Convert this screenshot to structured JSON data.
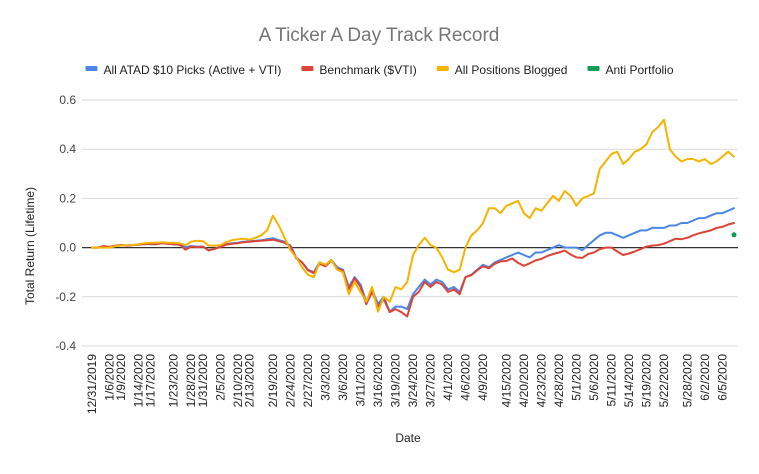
{
  "chart_data": {
    "type": "line",
    "title": "A Ticker A Day Track Record",
    "xlabel": "Date",
    "ylabel": "Total Return (Lifetime)",
    "ylim": [
      -0.4,
      0.6
    ],
    "yticks": [
      "-0.4",
      "-0.2",
      "0.0",
      "0.2",
      "0.4",
      "0.6"
    ],
    "grid": true,
    "legend_position": "top",
    "x_tick_labels": [
      "12/31/2019",
      "1/6/2020",
      "1/9/2020",
      "1/14/2020",
      "1/17/2020",
      "1/23/2020",
      "1/28/2020",
      "1/31/2020",
      "2/5/2020",
      "2/10/2020",
      "2/13/2020",
      "2/19/2020",
      "2/24/2020",
      "2/27/2020",
      "3/3/2020",
      "3/6/2020",
      "3/11/2020",
      "3/16/2020",
      "3/19/2020",
      "3/24/2020",
      "3/27/2020",
      "4/1/2020",
      "4/6/2020",
      "4/9/2020",
      "4/15/2020",
      "4/20/2020",
      "4/23/2020",
      "4/28/2020",
      "5/1/2020",
      "5/6/2020",
      "5/11/2020",
      "5/14/2020",
      "5/19/2020",
      "5/22/2020",
      "5/28/2020",
      "6/2/2020",
      "6/5/2020"
    ],
    "x_tick_index": [
      0,
      3,
      5,
      8,
      10,
      14,
      17,
      19,
      22,
      25,
      27,
      31,
      34,
      37,
      40,
      43,
      46,
      49,
      52,
      55,
      58,
      61,
      64,
      67,
      71,
      74,
      77,
      80,
      83,
      86,
      89,
      92,
      95,
      98,
      102,
      105,
      108
    ],
    "x_count": 111,
    "series": [
      {
        "name": "All ATAD $10 Picks (Active + VTI)",
        "color": "#4a86e8",
        "values": [
          0.0,
          0.0,
          0.004,
          0.002,
          0.006,
          0.01,
          0.008,
          0.01,
          0.012,
          0.016,
          0.014,
          0.014,
          0.018,
          0.016,
          0.014,
          0.012,
          0.002,
          0.006,
          0.004,
          0.004,
          -0.01,
          -0.006,
          0.004,
          0.014,
          0.018,
          0.02,
          0.024,
          0.026,
          0.028,
          0.03,
          0.034,
          0.038,
          0.03,
          0.024,
          0.008,
          -0.04,
          -0.06,
          -0.09,
          -0.1,
          -0.06,
          -0.07,
          -0.05,
          -0.08,
          -0.09,
          -0.16,
          -0.12,
          -0.15,
          -0.22,
          -0.17,
          -0.23,
          -0.2,
          -0.26,
          -0.24,
          -0.24,
          -0.25,
          -0.19,
          -0.16,
          -0.13,
          -0.15,
          -0.13,
          -0.14,
          -0.17,
          -0.16,
          -0.18,
          -0.12,
          -0.11,
          -0.09,
          -0.07,
          -0.08,
          -0.06,
          -0.05,
          -0.04,
          -0.03,
          -0.02,
          -0.03,
          -0.04,
          -0.02,
          -0.02,
          -0.01,
          0.0,
          0.01,
          0.0,
          0.0,
          0.0,
          -0.01,
          0.01,
          0.03,
          0.05,
          0.06,
          0.06,
          0.05,
          0.04,
          0.05,
          0.06,
          0.07,
          0.07,
          0.08,
          0.08,
          0.08,
          0.09,
          0.09,
          0.1,
          0.1,
          0.11,
          0.12,
          0.12,
          0.13,
          0.14,
          0.14,
          0.15,
          0.16
        ]
      },
      {
        "name": "Benchmark ($VTI)",
        "color": "#db4437",
        "values": [
          0.0,
          0.0,
          0.006,
          0.003,
          0.008,
          0.01,
          0.008,
          0.01,
          0.012,
          0.014,
          0.016,
          0.014,
          0.018,
          0.016,
          0.014,
          0.012,
          -0.008,
          0.004,
          0.002,
          0.004,
          -0.012,
          -0.004,
          0.002,
          0.012,
          0.016,
          0.018,
          0.022,
          0.024,
          0.026,
          0.028,
          0.03,
          0.032,
          0.026,
          0.02,
          0.004,
          -0.044,
          -0.06,
          -0.092,
          -0.104,
          -0.066,
          -0.076,
          -0.052,
          -0.086,
          -0.094,
          -0.17,
          -0.124,
          -0.16,
          -0.23,
          -0.18,
          -0.24,
          -0.21,
          -0.262,
          -0.25,
          -0.262,
          -0.28,
          -0.2,
          -0.18,
          -0.14,
          -0.16,
          -0.14,
          -0.15,
          -0.18,
          -0.17,
          -0.19,
          -0.12,
          -0.112,
          -0.092,
          -0.076,
          -0.084,
          -0.066,
          -0.056,
          -0.054,
          -0.044,
          -0.062,
          -0.074,
          -0.064,
          -0.052,
          -0.046,
          -0.034,
          -0.026,
          -0.02,
          -0.012,
          -0.028,
          -0.04,
          -0.042,
          -0.026,
          -0.02,
          -0.006,
          0.0,
          0.0,
          -0.016,
          -0.03,
          -0.024,
          -0.016,
          -0.006,
          0.004,
          0.008,
          0.01,
          0.016,
          0.026,
          0.036,
          0.034,
          0.04,
          0.05,
          0.058,
          0.064,
          0.07,
          0.08,
          0.084,
          0.094,
          0.1
        ]
      },
      {
        "name": "All Positions Blogged",
        "color": "#f4b400",
        "values": [
          0.0,
          0.0,
          0.0,
          0.0,
          0.006,
          0.008,
          0.01,
          0.01,
          0.014,
          0.018,
          0.02,
          0.02,
          0.022,
          0.02,
          0.02,
          0.018,
          0.01,
          0.024,
          0.028,
          0.026,
          0.008,
          0.008,
          0.01,
          0.022,
          0.03,
          0.034,
          0.036,
          0.032,
          0.04,
          0.05,
          0.07,
          0.13,
          0.09,
          0.04,
          -0.01,
          -0.04,
          -0.08,
          -0.11,
          -0.12,
          -0.06,
          -0.07,
          -0.05,
          -0.09,
          -0.1,
          -0.19,
          -0.14,
          -0.18,
          -0.22,
          -0.16,
          -0.26,
          -0.2,
          -0.22,
          -0.16,
          -0.17,
          -0.14,
          -0.03,
          0.01,
          0.04,
          0.01,
          0.0,
          -0.04,
          -0.09,
          -0.1,
          -0.09,
          0.0,
          0.05,
          0.07,
          0.1,
          0.16,
          0.16,
          0.14,
          0.17,
          0.18,
          0.19,
          0.14,
          0.12,
          0.16,
          0.15,
          0.18,
          0.21,
          0.19,
          0.23,
          0.21,
          0.17,
          0.2,
          0.21,
          0.22,
          0.32,
          0.35,
          0.38,
          0.39,
          0.34,
          0.36,
          0.39,
          0.4,
          0.42,
          0.47,
          0.49,
          0.52,
          0.4,
          0.37,
          0.35,
          0.36,
          0.36,
          0.35,
          0.36,
          0.34,
          0.35,
          0.37,
          0.39,
          0.37
        ]
      },
      {
        "name": "Anti Portfolio",
        "color": "#0f9d58",
        "points": [
          [
            110,
            0.052
          ]
        ]
      }
    ]
  }
}
